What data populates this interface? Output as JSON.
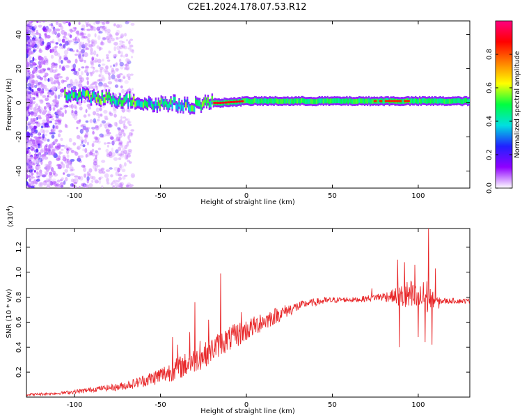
{
  "figure_title": "C2E1.2024.178.07.53.R12",
  "chart_data": [
    {
      "type": "heatmap",
      "title": "C2E1.2024.178.07.53.R12",
      "xlabel": "Height of straight line (km)",
      "ylabel": "Frequency (Hz)",
      "xlim": [
        -128,
        130
      ],
      "ylim": [
        -50,
        48
      ],
      "xticks": [
        -100,
        -50,
        0,
        50,
        100
      ],
      "yticks": [
        -40,
        -20,
        0,
        20,
        40
      ],
      "colorbar": {
        "label": "Normalized spectral amplitude",
        "range": [
          0.0,
          1.0
        ],
        "ticks": [
          0.0,
          0.2,
          0.4,
          0.6,
          0.8
        ],
        "colormap": [
          "#ffffff",
          "#9000ff",
          "#2020ff",
          "#00e0e0",
          "#00ff40",
          "#ffff00",
          "#ff8000",
          "#ff0000",
          "#ff0080"
        ]
      },
      "ridge": [
        {
          "x": -105,
          "f": 4
        },
        {
          "x": -95,
          "f": 4
        },
        {
          "x": -85,
          "f": 3
        },
        {
          "x": -75,
          "f": 2
        },
        {
          "x": -65,
          "f": 1
        },
        {
          "x": -55,
          "f": -1
        },
        {
          "x": -45,
          "f": 0
        },
        {
          "x": -35,
          "f": -2
        },
        {
          "x": -25,
          "f": 0
        },
        {
          "x": -15,
          "f": 0
        },
        {
          "x": 0,
          "f": 1
        },
        {
          "x": 25,
          "f": 1
        },
        {
          "x": 50,
          "f": 1
        },
        {
          "x": 75,
          "f": 1
        },
        {
          "x": 90,
          "f": 1
        },
        {
          "x": 105,
          "f": 1
        },
        {
          "x": 130,
          "f": 1
        }
      ],
      "hot_segments": [
        {
          "x_from": -20,
          "x_to": -2,
          "value": 0.9
        },
        {
          "x_from": 75,
          "x_to": 95,
          "value": 0.85
        },
        {
          "x_from": 104,
          "x_to": 108,
          "value": 0.85
        }
      ]
    },
    {
      "type": "line",
      "xlabel": "Height of straight line (km)",
      "ylabel": "SNR (10 * v/v)",
      "y_scale_label": "(x10",
      "y_scale_exponent": "4",
      "xlim": [
        -128,
        130
      ],
      "ylim": [
        0,
        1.35
      ],
      "xticks": [
        -100,
        -50,
        0,
        50,
        100
      ],
      "yticks": [
        0.2,
        0.4,
        0.6,
        0.8,
        1.0,
        1.2
      ],
      "line_color": "#e8282a",
      "series": [
        {
          "name": "SNR",
          "x": [
            -128,
            -110,
            -95,
            -85,
            -75,
            -65,
            -55,
            -45,
            -35,
            -25,
            -15,
            -5,
            5,
            15,
            25,
            35,
            45,
            55,
            65,
            75,
            85,
            95,
            100,
            105,
            110,
            120,
            130
          ],
          "y": [
            0.02,
            0.03,
            0.05,
            0.07,
            0.08,
            0.11,
            0.15,
            0.2,
            0.26,
            0.33,
            0.43,
            0.5,
            0.57,
            0.64,
            0.7,
            0.75,
            0.77,
            0.78,
            0.78,
            0.8,
            0.81,
            0.8,
            0.78,
            0.8,
            0.77,
            0.77,
            0.77
          ],
          "noise": [
            0.01,
            0.01,
            0.02,
            0.02,
            0.03,
            0.04,
            0.06,
            0.08,
            0.1,
            0.1,
            0.1,
            0.1,
            0.08,
            0.07,
            0.05,
            0.03,
            0.03,
            0.02,
            0.02,
            0.03,
            0.05,
            0.15,
            0.1,
            0.15,
            0.03,
            0.02,
            0.02
          ]
        }
      ],
      "spikes": [
        {
          "x": -43,
          "y": 0.48
        },
        {
          "x": -40,
          "y": 0.42
        },
        {
          "x": -33,
          "y": 0.52
        },
        {
          "x": -30,
          "y": 0.76
        },
        {
          "x": -27,
          "y": 0.45
        },
        {
          "x": -22,
          "y": 0.62
        },
        {
          "x": -15,
          "y": 0.99
        },
        {
          "x": -3,
          "y": 0.68
        },
        {
          "x": 8,
          "y": 0.66
        },
        {
          "x": 73,
          "y": 0.87
        },
        {
          "x": 85,
          "y": 0.78
        },
        {
          "x": 88,
          "y": 1.1
        },
        {
          "x": 89,
          "y": 0.4
        },
        {
          "x": 92,
          "y": 1.08
        },
        {
          "x": 95,
          "y": 0.86
        },
        {
          "x": 98,
          "y": 1.06
        },
        {
          "x": 100,
          "y": 0.48
        },
        {
          "x": 103,
          "y": 0.92
        },
        {
          "x": 104,
          "y": 0.44
        },
        {
          "x": 106,
          "y": 1.35
        },
        {
          "x": 108,
          "y": 0.42
        },
        {
          "x": 110,
          "y": 1.03
        },
        {
          "x": 112,
          "y": 0.71
        }
      ]
    }
  ]
}
